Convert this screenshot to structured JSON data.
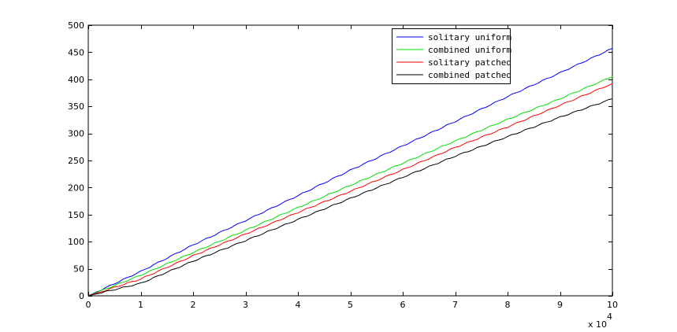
{
  "chart_data": {
    "type": "line",
    "title": "",
    "xlabel": "",
    "ylabel": "",
    "x_multiplier_label": "x 10",
    "x_multiplier_exponent": "4",
    "xlim": [
      0,
      100000
    ],
    "ylim": [
      0,
      500
    ],
    "x_ticks": [
      0,
      10000,
      20000,
      30000,
      40000,
      50000,
      60000,
      70000,
      80000,
      90000,
      100000
    ],
    "x_tick_labels": [
      "0",
      "1",
      "2",
      "3",
      "4",
      "5",
      "6",
      "7",
      "8",
      "9",
      "10"
    ],
    "y_ticks": [
      0,
      50,
      100,
      150,
      200,
      250,
      300,
      350,
      400,
      450,
      500
    ],
    "y_tick_labels": [
      "0",
      "50",
      "100",
      "150",
      "200",
      "250",
      "300",
      "350",
      "400",
      "450",
      "500"
    ],
    "grid": false,
    "legend_position": "top-right",
    "x": [
      0,
      10000,
      20000,
      30000,
      40000,
      50000,
      60000,
      70000,
      80000,
      90000,
      100000
    ],
    "series": [
      {
        "name": "solitary uniform",
        "color": "#0000ff",
        "values": [
          0,
          45,
          94,
          139,
          185,
          232,
          277,
          322,
          368,
          412,
          457
        ]
      },
      {
        "name": "combined uniform",
        "color": "#00e000",
        "values": [
          0,
          38,
          80,
          121,
          163,
          204,
          245,
          286,
          326,
          364,
          405
        ]
      },
      {
        "name": "solitary patched",
        "color": "#ff0000",
        "values": [
          0,
          31,
          74,
          114,
          154,
          193,
          233,
          274,
          312,
          352,
          392
        ]
      },
      {
        "name": "combined patched",
        "color": "#000000",
        "values": [
          0,
          23,
          64,
          102,
          141,
          180,
          219,
          258,
          294,
          330,
          364
        ]
      }
    ]
  }
}
